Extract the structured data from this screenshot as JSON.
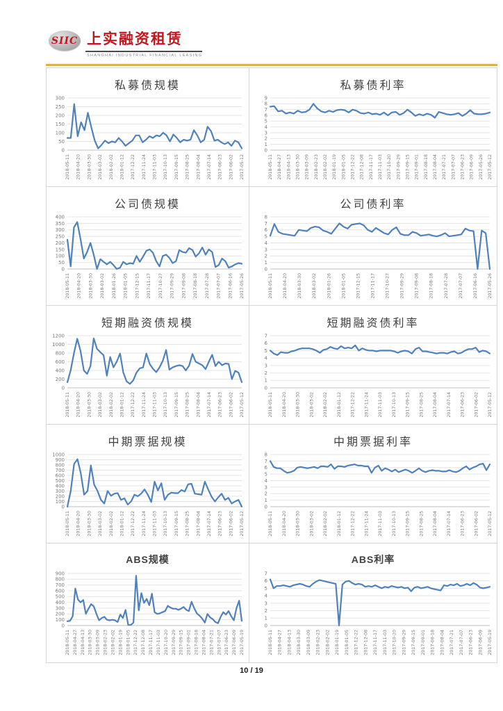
{
  "header": {
    "logo_text": "SIIC",
    "brand_name": "上实融资租赁",
    "brand_subtitle": "SHANGHAI INDUSTRIAL FINANCIAL LEASING",
    "colors": {
      "brand_red": "#c5161d",
      "rule_gold": "#d9b24a"
    }
  },
  "footer": {
    "page_number": "10 / 19"
  },
  "chart_style": {
    "line_color": "#4f81bd",
    "grid_color": "#e4e4e4",
    "axis_color": "#bfbfbf",
    "tick_color": "#7a7a7a"
  },
  "chart_data": [
    {
      "id": "private-bond-scale",
      "type": "line",
      "title": "私募债规模",
      "ylim": [
        0,
        300
      ],
      "y_ticks": [
        0,
        50,
        100,
        150,
        200,
        250,
        300
      ],
      "grid": true,
      "legend": "none",
      "x_labels": [
        "2018-05-11",
        "2018-04-20",
        "2018-03-30",
        "2018-03-02",
        "2018-02-02",
        "2018-01-12",
        "2017-12-22",
        "2017-11-24",
        "2017-11-03",
        "2017-10-13",
        "2017-09-15",
        "2017-08-25",
        "2017-08-04",
        "2017-07-14",
        "2017-06-23",
        "2017-06-02",
        "2017-05-12"
      ],
      "values": [
        70,
        70,
        265,
        80,
        160,
        115,
        215,
        130,
        55,
        10,
        30,
        55,
        40,
        50,
        45,
        70,
        50,
        25,
        40,
        55,
        85,
        85,
        45,
        60,
        80,
        70,
        85,
        80,
        100,
        85,
        50,
        90,
        70,
        45,
        60,
        55,
        60,
        115,
        85,
        45,
        60,
        135,
        110,
        55,
        60,
        45,
        35,
        45,
        25,
        55,
        45,
        10
      ]
    },
    {
      "id": "private-bond-rate",
      "type": "line",
      "title": "私募债利率",
      "ylim": [
        0,
        9
      ],
      "y_ticks": [
        0,
        1,
        2,
        3,
        4,
        5,
        6,
        7,
        8,
        9
      ],
      "grid": true,
      "legend": "none",
      "x_labels": [
        "2018-05-11",
        "2018-04-27",
        "2018-04-13",
        "2018-03-30",
        "2018-03-09",
        "2018-02-23",
        "2018-02-02",
        "2018-01-19",
        "2018-01-05",
        "2017-12-22",
        "2017-12-08",
        "2017-11-17",
        "2017-11-03",
        "2017-10-20",
        "2017-09-29",
        "2017-09-15",
        "2017-09-01",
        "2017-08-18",
        "2017-08-04",
        "2017-07-21",
        "2017-07-07",
        "2017-06-23",
        "2017-06-09",
        "2017-05-26",
        "2017-05-12"
      ],
      "values": [
        7.5,
        7.6,
        6.7,
        6.8,
        6.3,
        6.5,
        6.3,
        6.8,
        6.5,
        6.6,
        7.0,
        8.0,
        7.2,
        6.7,
        6.5,
        6.8,
        6.6,
        6.9,
        7.0,
        6.9,
        6.5,
        7.0,
        6.8,
        6.4,
        6.3,
        6.5,
        6.2,
        6.3,
        6.1,
        6.5,
        6.0,
        6.5,
        6.6,
        6.1,
        6.4,
        7.0,
        6.5,
        5.9,
        6.2,
        6.0,
        6.3,
        6.1,
        5.6,
        6.6,
        6.4,
        6.2,
        6.1,
        6.2,
        6.4,
        5.9,
        6.3,
        6.9,
        6.3,
        6.2,
        6.2,
        6.3,
        6.5
      ]
    },
    {
      "id": "corporate-bond-scale",
      "type": "line",
      "title": "公司债规模",
      "ylim": [
        0,
        400
      ],
      "y_ticks": [
        0,
        50,
        100,
        150,
        200,
        250,
        300,
        350,
        400
      ],
      "grid": true,
      "legend": "none",
      "x_labels": [
        "2018-05-11",
        "2018-04-20",
        "2018-03-30",
        "2018-03-02",
        "2018-01-26",
        "2018-01-05",
        "2017-12-15",
        "2017-11-17",
        "2017-10-27",
        "2017-09-29",
        "2017-09-08",
        "2017-08-18",
        "2017-07-28",
        "2017-07-07",
        "2017-06-16",
        "2017-05-26"
      ],
      "values": [
        225,
        20,
        320,
        360,
        230,
        80,
        130,
        200,
        110,
        0,
        75,
        55,
        35,
        55,
        30,
        0,
        10,
        55,
        35,
        45,
        40,
        100,
        55,
        95,
        140,
        150,
        125,
        60,
        20,
        100,
        110,
        85,
        45,
        60,
        145,
        130,
        125,
        160,
        145,
        95,
        120,
        165,
        110,
        150,
        130,
        15,
        30,
        80,
        60,
        10,
        20,
        35,
        45,
        40
      ]
    },
    {
      "id": "corporate-bond-rate",
      "type": "line",
      "title": "公司债利率",
      "ylim": [
        0,
        8
      ],
      "y_ticks": [
        0,
        1,
        2,
        3,
        4,
        5,
        6,
        7,
        8
      ],
      "grid": true,
      "legend": "none",
      "x_labels": [
        "2018-05-11",
        "2018-04-20",
        "2018-03-30",
        "2018-03-02",
        "2018-01-26",
        "2018-01-05",
        "2017-12-15",
        "2017-11-17",
        "2017-10-27",
        "2017-09-29",
        "2017-09-08",
        "2017-08-18",
        "2017-07-28",
        "2017-07-07",
        "2017-06-16",
        "2017-05-26"
      ],
      "values": [
        5.1,
        6.9,
        5.7,
        5.4,
        5.3,
        5.2,
        5.1,
        6.0,
        5.9,
        5.8,
        6.3,
        6.5,
        6.4,
        5.9,
        5.7,
        5.4,
        6.2,
        7.0,
        6.5,
        6.2,
        6.8,
        6.9,
        7.0,
        6.7,
        6.0,
        5.7,
        6.3,
        5.9,
        5.5,
        5.3,
        6.0,
        6.4,
        5.4,
        5.2,
        5.2,
        5.7,
        5.5,
        5.1,
        5.2,
        5.3,
        5.1,
        5.0,
        5.2,
        5.5,
        5.0,
        5.1,
        5.2,
        5.3,
        6.2,
        5.9,
        5.8,
        0,
        5.9,
        5.5,
        0
      ]
    },
    {
      "id": "short-term-bond-scale",
      "type": "line",
      "title": "短期融资债规模",
      "ylim": [
        0,
        1200
      ],
      "y_ticks": [
        0,
        200,
        400,
        600,
        800,
        1000,
        1200
      ],
      "grid": true,
      "legend": "none",
      "x_labels": [
        "2018-05-11",
        "2018-04-20",
        "2018-03-30",
        "2018-03-02",
        "2018-02-02",
        "2018-01-12",
        "2017-12-22",
        "2017-11-24",
        "2017-11-03",
        "2017-10-13",
        "2017-09-15",
        "2017-08-25",
        "2017-08-04",
        "2017-07-14",
        "2017-06-23",
        "2017-06-02",
        "2017-05-12"
      ],
      "values": [
        130,
        400,
        800,
        1130,
        850,
        400,
        320,
        500,
        1140,
        900,
        820,
        750,
        280,
        710,
        470,
        600,
        790,
        350,
        150,
        90,
        170,
        350,
        450,
        470,
        790,
        550,
        440,
        360,
        470,
        620,
        870,
        420,
        470,
        500,
        520,
        500,
        400,
        510,
        780,
        600,
        560,
        520,
        430,
        600,
        760,
        500,
        600,
        520,
        560,
        550,
        200,
        390,
        350,
        130
      ]
    },
    {
      "id": "short-term-bond-rate",
      "type": "line",
      "title": "短期融资债利率",
      "ylim": [
        0,
        7
      ],
      "y_ticks": [
        0,
        1,
        2,
        3,
        4,
        5,
        6,
        7
      ],
      "grid": true,
      "legend": "none",
      "x_labels": [
        "2018-05-11",
        "2018-04-20",
        "2018-03-30",
        "2018-03-02",
        "2018-02-02",
        "2018-01-12",
        "2017-12-22",
        "2017-11-24",
        "2017-11-03",
        "2017-10-13",
        "2017-09-15",
        "2017-08-25",
        "2017-08-04",
        "2017-07-14",
        "2017-06-23",
        "2017-06-02",
        "2017-05-12"
      ],
      "values": [
        5.0,
        4.6,
        4.4,
        4.8,
        4.7,
        4.7,
        4.9,
        5.0,
        5.2,
        5.3,
        5.3,
        5.3,
        5.2,
        5.0,
        4.7,
        5.1,
        5.2,
        5.5,
        5.3,
        5.2,
        5.6,
        5.3,
        5.4,
        5.3,
        5.7,
        5.0,
        5.3,
        5.1,
        5.0,
        5.0,
        4.9,
        5.0,
        5.0,
        5.0,
        5.0,
        4.9,
        4.7,
        4.9,
        5.0,
        4.9,
        4.6,
        5.2,
        5.4,
        4.9,
        4.9,
        4.8,
        4.7,
        4.6,
        4.7,
        4.7,
        4.6,
        4.8,
        4.9,
        4.6,
        4.7,
        5.0,
        5.2,
        5.2,
        5.4,
        4.8,
        5.0,
        4.9,
        4.6
      ]
    },
    {
      "id": "mtn-scale",
      "type": "line",
      "title": "中期票据规模",
      "ylim": [
        0,
        1000
      ],
      "y_ticks": [
        0,
        100,
        200,
        300,
        400,
        500,
        600,
        700,
        800,
        900,
        1000
      ],
      "grid": true,
      "legend": "none",
      "x_labels": [
        "2018-05-11",
        "2018-04-20",
        "2018-03-30",
        "2018-03-02",
        "2018-02-02",
        "2018-01-12",
        "2017-12-22",
        "2017-11-24",
        "2017-11-03",
        "2017-10-13",
        "2017-09-15",
        "2017-08-25",
        "2017-08-04",
        "2017-07-14",
        "2017-06-23",
        "2017-06-02",
        "2017-05-12"
      ],
      "values": [
        0,
        300,
        820,
        910,
        640,
        230,
        300,
        790,
        420,
        300,
        130,
        60,
        300,
        210,
        250,
        260,
        130,
        160,
        40,
        100,
        230,
        200,
        250,
        330,
        230,
        90,
        480,
        310,
        450,
        130,
        230,
        270,
        260,
        260,
        320,
        290,
        430,
        440,
        250,
        240,
        230,
        480,
        330,
        190,
        100,
        180,
        250,
        130,
        170,
        60,
        100,
        130,
        0
      ]
    },
    {
      "id": "mtn-rate",
      "type": "line",
      "title": "中期票据利率",
      "ylim": [
        0,
        8
      ],
      "y_ticks": [
        0,
        1,
        2,
        3,
        4,
        5,
        6,
        7,
        8
      ],
      "grid": true,
      "legend": "none",
      "x_labels": [
        "2018-05-11",
        "2018-04-20",
        "2018-03-30",
        "2018-03-02",
        "2018-02-02",
        "2018-01-12",
        "2017-12-22",
        "2017-11-24",
        "2017-11-03",
        "2017-10-13",
        "2017-09-15",
        "2017-08-25",
        "2017-08-04",
        "2017-07-14",
        "2017-06-23",
        "2017-06-02",
        "2017-05-12"
      ],
      "values": [
        7.0,
        6.1,
        5.9,
        5.9,
        5.5,
        5.2,
        5.3,
        5.5,
        6.0,
        6.1,
        6.0,
        5.9,
        6.0,
        6.1,
        5.9,
        6.2,
        6.2,
        6.1,
        6.5,
        5.8,
        6.2,
        6.2,
        6.1,
        6.3,
        6.4,
        6.5,
        6.3,
        6.3,
        6.2,
        6.2,
        5.2,
        6.0,
        6.3,
        5.5,
        5.9,
        5.7,
        5.4,
        5.7,
        5.3,
        5.5,
        5.7,
        5.5,
        5.2,
        5.5,
        5.9,
        5.5,
        5.3,
        5.5,
        5.6,
        5.5,
        5.5,
        5.4,
        5.4,
        5.6,
        5.4,
        5.3,
        5.5,
        5.9,
        6.2,
        5.7,
        6.0,
        6.2,
        6.5,
        6.6,
        5.6,
        6.5
      ]
    },
    {
      "id": "abs-scale",
      "type": "line",
      "title": "ABS规模",
      "ylim": [
        0,
        900
      ],
      "y_ticks": [
        0,
        100,
        200,
        300,
        400,
        500,
        600,
        700,
        800,
        900
      ],
      "grid": true,
      "legend": "none",
      "x_labels": [
        "2018-05-11",
        "2018-04-27",
        "2018-04-13",
        "2018-03-30",
        "2018-03-09",
        "2018-02-23",
        "2018-02-02",
        "2018-01-19",
        "2018-01-05",
        "2017-12-22",
        "2017-12-08",
        "2017-11-17",
        "2017-11-03",
        "2017-10-20",
        "2017-09-29",
        "2017-09-15",
        "2017-09-01",
        "2017-08-18",
        "2017-08-04",
        "2017-07-21",
        "2017-07-07",
        "2017-06-23",
        "2017-06-09",
        "2017-05-19"
      ],
      "values": [
        75,
        80,
        160,
        640,
        450,
        400,
        440,
        200,
        290,
        370,
        330,
        200,
        90,
        130,
        150,
        100,
        90,
        100,
        90,
        60,
        190,
        130,
        270,
        10,
        10,
        50,
        860,
        260,
        560,
        390,
        460,
        350,
        550,
        230,
        200,
        210,
        230,
        250,
        340,
        310,
        290,
        290,
        270,
        290,
        320,
        270,
        250,
        410,
        300,
        210,
        170,
        120,
        50,
        200,
        140,
        110,
        60,
        40,
        150,
        230,
        190,
        250,
        160,
        90,
        300,
        430,
        80
      ]
    },
    {
      "id": "abs-rate",
      "type": "line",
      "title": "ABS利率",
      "ylim": [
        0,
        7
      ],
      "y_ticks": [
        0,
        1,
        2,
        3,
        4,
        5,
        6,
        7
      ],
      "grid": true,
      "legend": "none",
      "x_labels": [
        "2018-05-11",
        "2018-04-27",
        "2018-04-13",
        "2018-03-30",
        "2018-03-09",
        "2018-02-23",
        "2018-02-02",
        "2018-01-19",
        "2018-01-05",
        "2017-12-22",
        "2017-12-08",
        "2017-11-17",
        "2017-11-03",
        "2017-10-20",
        "2017-09-29",
        "2017-09-15",
        "2017-09-01",
        "2017-08-18",
        "2017-08-04",
        "2017-07-21",
        "2017-07-07",
        "2017-06-23",
        "2017-06-09",
        "2017-05-19"
      ],
      "values": [
        6.2,
        5.0,
        5.3,
        5.3,
        5.4,
        5.3,
        5.2,
        5.4,
        5.5,
        5.6,
        5.5,
        5.3,
        5.2,
        5.6,
        5.9,
        6.1,
        6.0,
        5.9,
        5.8,
        5.7,
        5.6,
        0.0,
        5.5,
        5.9,
        6.0,
        5.7,
        5.5,
        5.6,
        5.5,
        5.2,
        5.3,
        5.2,
        5.4,
        5.2,
        5.0,
        5.2,
        5.1,
        5.3,
        5.2,
        5.1,
        5.2,
        5.0,
        5.1,
        4.6,
        5.1,
        5.2,
        5.0,
        5.1,
        5.2,
        5.0,
        4.9,
        4.8,
        4.7,
        5.4,
        5.3,
        5.5,
        5.4,
        5.6,
        5.3,
        5.4,
        5.6,
        5.4,
        5.7,
        5.5,
        5.1,
        5.0,
        5.1,
        5.2
      ]
    }
  ]
}
